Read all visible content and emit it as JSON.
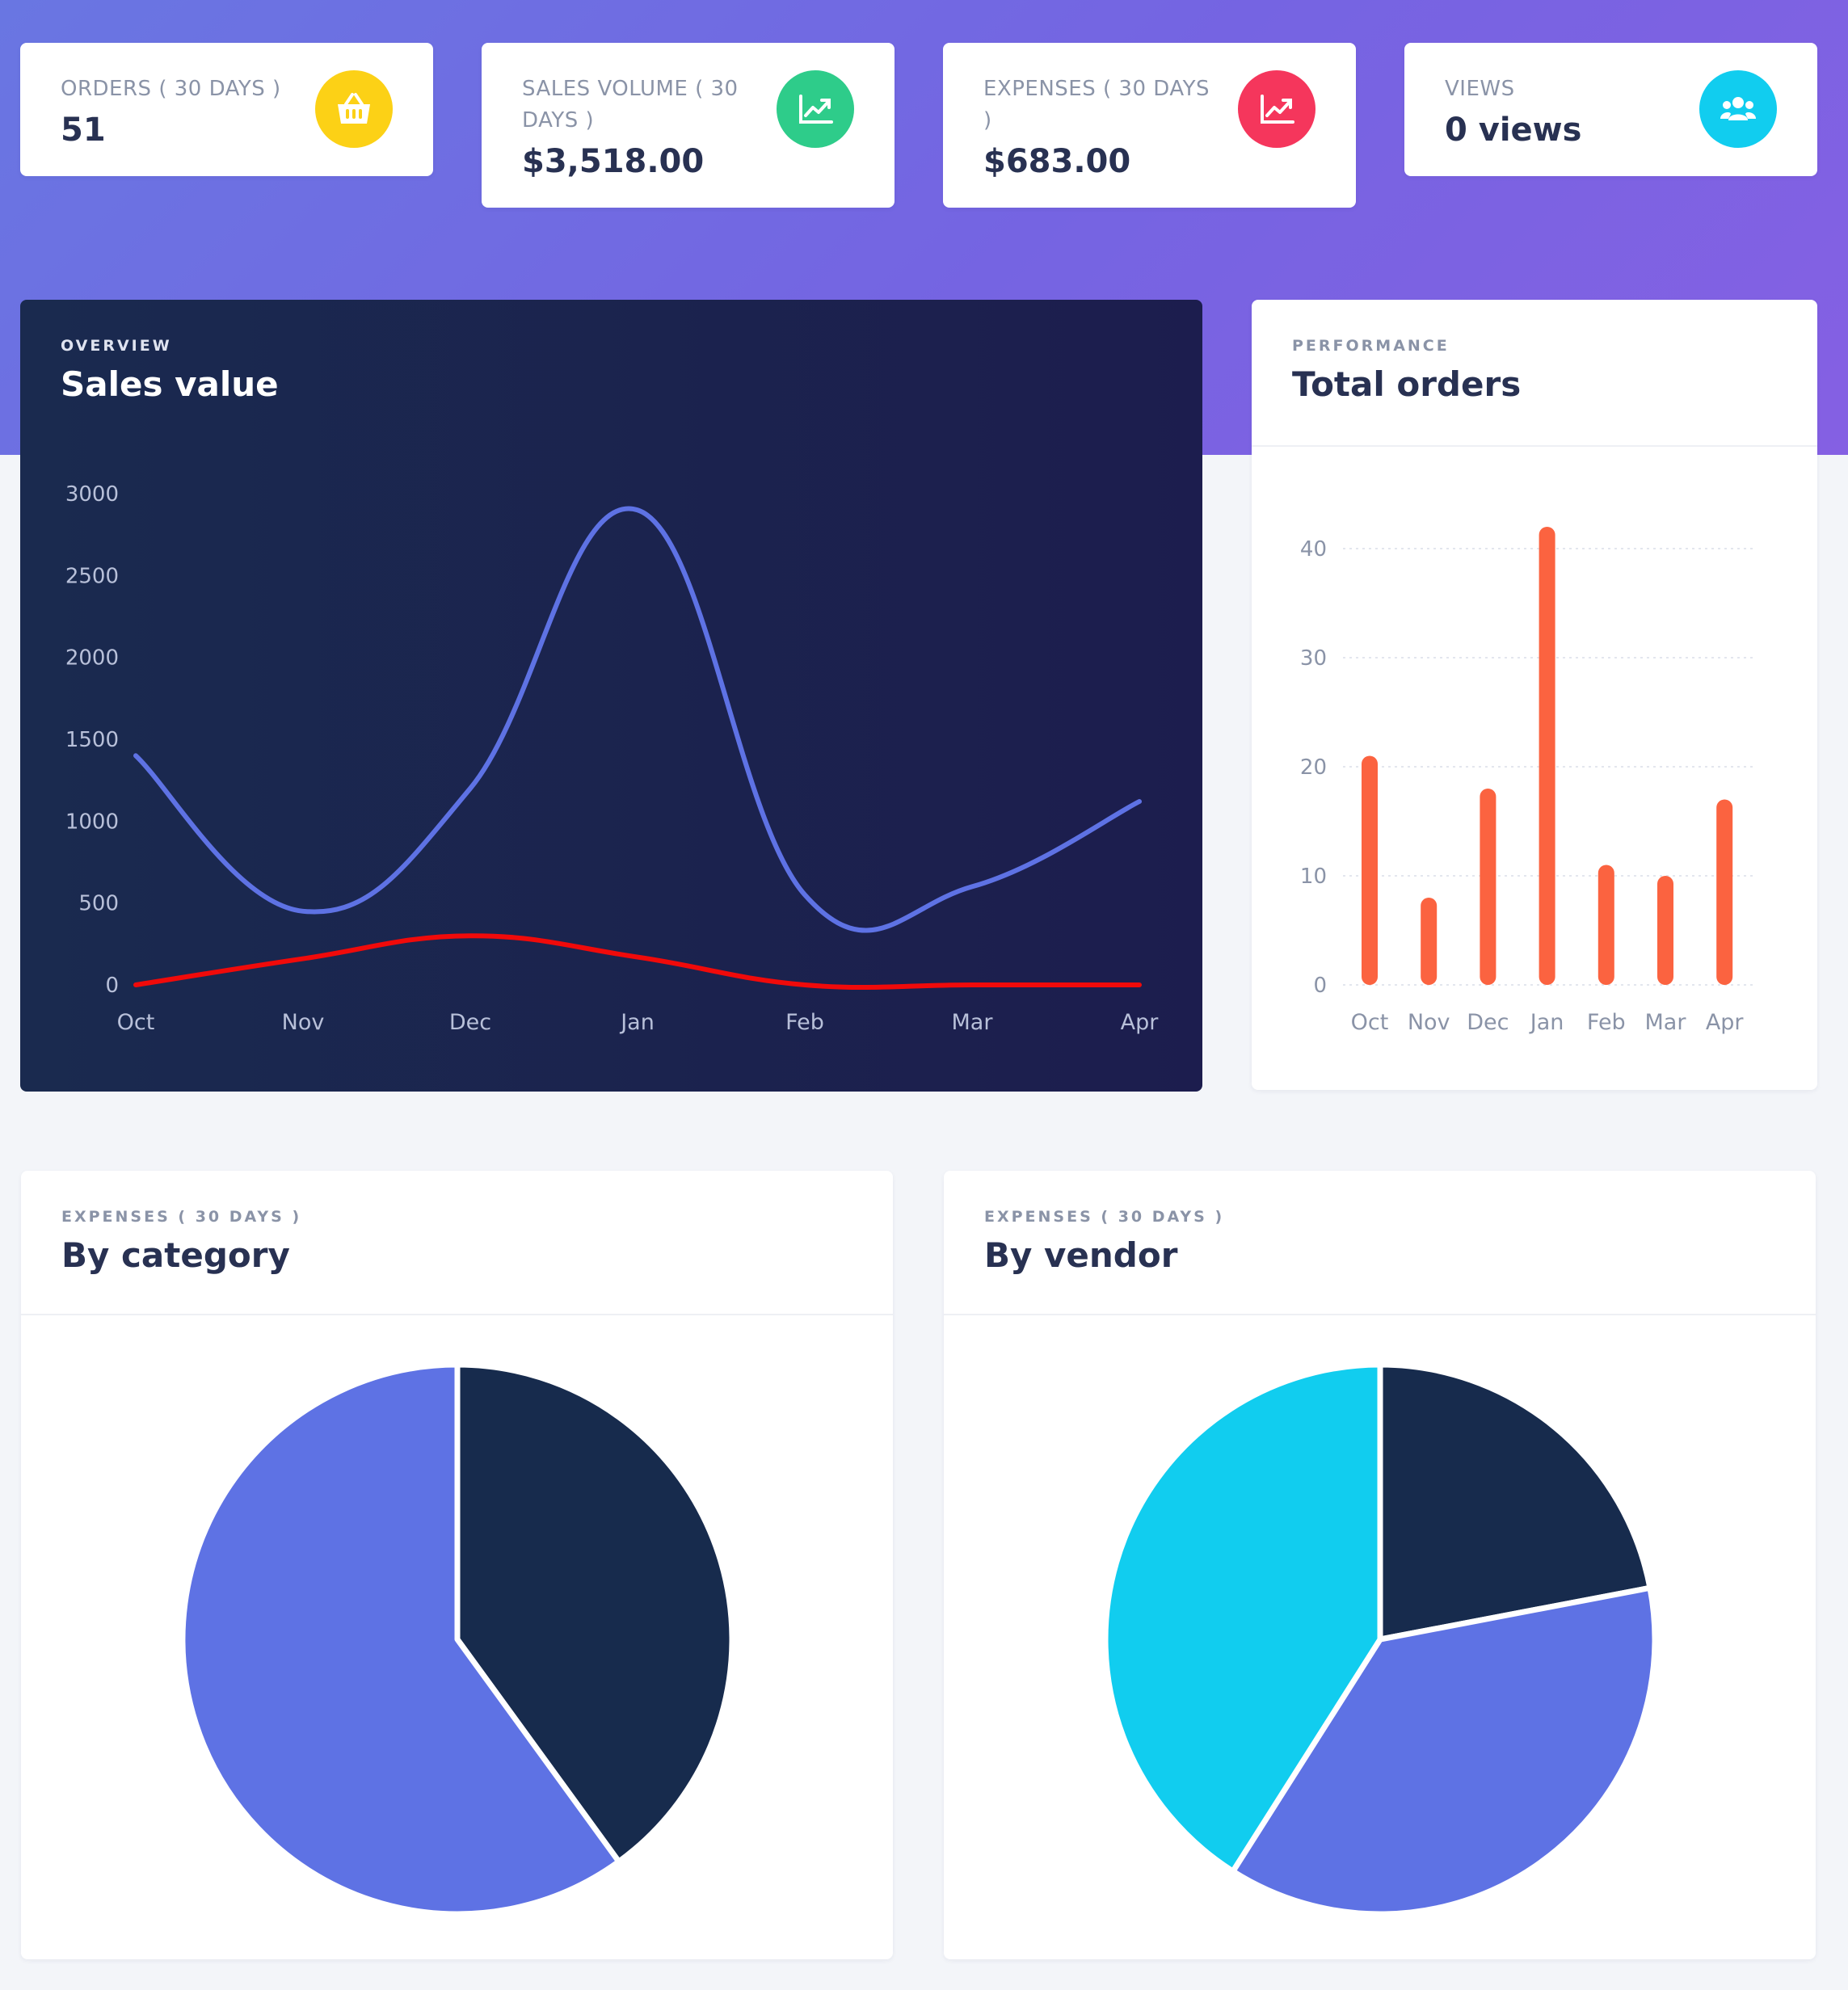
{
  "stats": [
    {
      "label": "ORDERS ( 30 DAYS )",
      "value": "51",
      "icon": "basket-icon",
      "color": "#fcd116"
    },
    {
      "label": "SALES VOLUME ( 30 DAYS )",
      "value": "$3,518.00",
      "icon": "chart-line-icon",
      "color": "#2ecc8a"
    },
    {
      "label": "EXPENSES ( 30 DAYS )",
      "value": "$683.00",
      "icon": "chart-line-icon",
      "color": "#f5365c"
    },
    {
      "label": "VIEWS",
      "value": "0 views",
      "icon": "users-icon",
      "color": "#11cdef"
    }
  ],
  "sales_card": {
    "overline": "OVERVIEW",
    "title": "Sales value"
  },
  "orders_card": {
    "overline": "PERFORMANCE",
    "title": "Total orders"
  },
  "category_card": {
    "overline": "EXPENSES ( 30 DAYS )",
    "title": "By category"
  },
  "vendor_card": {
    "overline": "EXPENSES ( 30 DAYS )",
    "title": "By vendor"
  },
  "chart_data": [
    {
      "type": "line",
      "categories": [
        "Oct",
        "Nov",
        "Dec",
        "Jan",
        "Feb",
        "Mar",
        "Apr"
      ],
      "series": [
        {
          "values": [
            1400,
            450,
            1200,
            2900,
            550,
            600,
            1120
          ],
          "color": "#5e72e4"
        },
        {
          "values": [
            0,
            160,
            300,
            170,
            0,
            0,
            0
          ],
          "color": "#f00a0a"
        }
      ],
      "ylim": [
        0,
        3000
      ],
      "yticks": [
        0,
        500,
        1000,
        1500,
        2000,
        2500,
        3000
      ],
      "grid": false
    },
    {
      "type": "bar",
      "categories": [
        "Oct",
        "Nov",
        "Dec",
        "Jan",
        "Feb",
        "Mar",
        "Apr"
      ],
      "values": [
        21,
        8,
        18,
        42,
        11,
        10,
        17
      ],
      "color": "#fb6340",
      "ylim": [
        0,
        42
      ],
      "yticks": [
        0,
        10,
        20,
        30,
        40
      ],
      "grid": true
    },
    {
      "type": "pie",
      "values": [
        40,
        60
      ],
      "colors": [
        "#172b4d",
        "#5e72e4"
      ]
    },
    {
      "type": "pie",
      "values": [
        22,
        37,
        41
      ],
      "colors": [
        "#172b4d",
        "#5e72e4",
        "#11cdef"
      ]
    }
  ]
}
